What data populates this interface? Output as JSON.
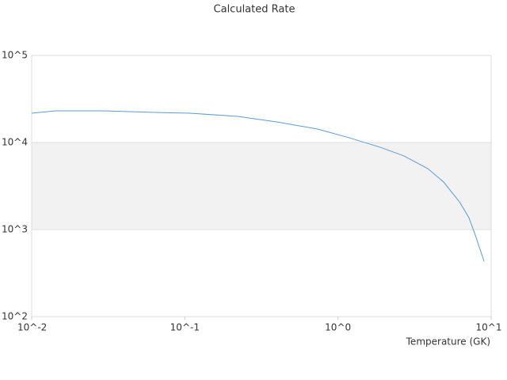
{
  "chart_data": {
    "type": "line",
    "title": "Calculated Rate",
    "x_label": "Temperature (GK)",
    "xscale": "log",
    "yscale": "log",
    "grid": true,
    "xlim": [
      0.01,
      10
    ],
    "ylim": [
      100,
      100000
    ],
    "xticks": [
      {
        "value": 0.01,
        "label": "10^-2"
      },
      {
        "value": 0.1,
        "label": "10^-1"
      },
      {
        "value": 1,
        "label": "10^0"
      },
      {
        "value": 10,
        "label": "10^1"
      }
    ],
    "yticks": [
      {
        "value": 100,
        "label": "10^2"
      },
      {
        "value": 1000,
        "label": "10^3"
      },
      {
        "value": 10000,
        "label": "10^4"
      },
      {
        "value": 100000,
        "label": "10^5"
      }
    ],
    "series": [
      {
        "color": "#5b9bd5",
        "x": [
          0.01,
          0.0143,
          0.0292,
          0.0673,
          0.108,
          0.221,
          0.402,
          0.73,
          1.18,
          1.89,
          2.7,
          3.86,
          4.9,
          6.21,
          7.16,
          7.88,
          8.99
        ],
        "values": [
          21700,
          23100,
          23100,
          22100,
          21700,
          19950,
          17200,
          14300,
          11350,
          8810,
          7000,
          5010,
          3510,
          2080,
          1370,
          863,
          432
        ]
      }
    ]
  }
}
